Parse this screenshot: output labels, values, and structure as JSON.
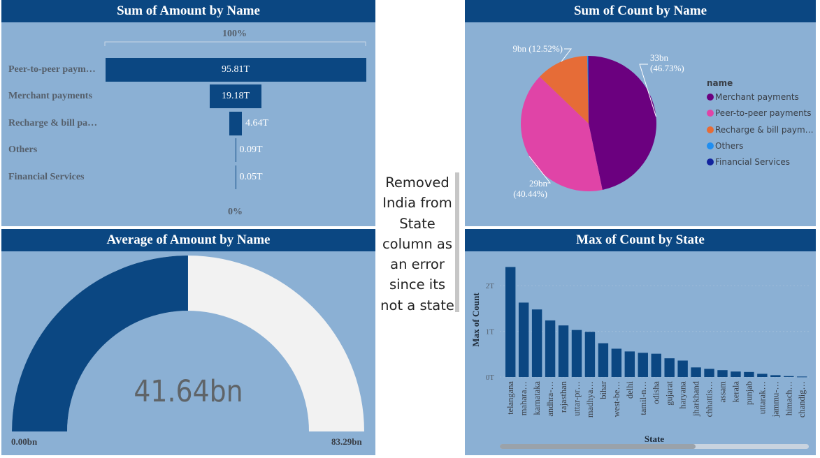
{
  "note": {
    "lines": [
      "Removed",
      "India from",
      "State",
      "column as",
      "an error",
      "since its",
      "not a state"
    ]
  },
  "funnel": {
    "title": "Sum of Amount by Name",
    "top_label": "100%",
    "bottom_label": "0%",
    "chart_data": {
      "type": "bar",
      "title": "Sum of Amount by Name",
      "categories": [
        "Peer-to-peer paym…",
        "Merchant payments",
        "Recharge & bill pa…",
        "Others",
        "Financial Services"
      ],
      "values": [
        95.81,
        19.18,
        4.64,
        0.09,
        0.05
      ],
      "value_labels": [
        "95.81T",
        "19.18T",
        "4.64T",
        "0.09T",
        "0.05T"
      ],
      "unit": "T",
      "color": "#0b4782"
    }
  },
  "pie": {
    "title": "Sum of Count by Name",
    "legend_title": "name",
    "chart_data": {
      "type": "pie",
      "title": "Sum of Count by Name",
      "slices": [
        {
          "name": "Merchant payments",
          "value": 33,
          "label": "33bn",
          "pct": "(46.73%)",
          "color": "#6b007f"
        },
        {
          "name": "Peer-to-peer payments",
          "value": 28.56,
          "label": "29bn",
          "pct": "(40.44%)",
          "color": "#e044a7"
        },
        {
          "name": "Recharge & bill paym…",
          "value": 8.84,
          "label": "9bn",
          "pct": "(12.52%)",
          "color": "#e66c37"
        },
        {
          "name": "Others",
          "value": 0.15,
          "label": "",
          "pct": "",
          "color": "#1f8ef1"
        },
        {
          "name": "Financial Services",
          "value": 0.07,
          "label": "",
          "pct": "",
          "color": "#12239e"
        }
      ],
      "legend_placement": "right"
    }
  },
  "gauge": {
    "title": "Average of Amount by Name",
    "chart_data": {
      "type": "gauge",
      "value": 41.64,
      "min": 0,
      "max": 83.29,
      "value_label": "41.64bn",
      "min_label": "0.00bn",
      "max_label": "83.29bn",
      "fill_color": "#0b4782",
      "track_color": "#f2f2f2"
    }
  },
  "column": {
    "title": "Max of Count by State",
    "chart_data": {
      "type": "bar",
      "title": "Max of Count by State",
      "xlabel": "State",
      "ylabel": "Max of Count",
      "ylim": [
        0,
        2.6
      ],
      "yticks": [
        0,
        1,
        2
      ],
      "ytick_labels": [
        "0T",
        "1T",
        "2T"
      ],
      "grid": true,
      "categories": [
        "telangana",
        "mahara…",
        "karnataka",
        "andhra-…",
        "rajasthan",
        "uttar-pr…",
        "madhya…",
        "bihar",
        "west-be…",
        "delhi",
        "tamil-n…",
        "odisha",
        "gujarat",
        "haryana",
        "jharkhand",
        "chhattis…",
        "assam",
        "kerala",
        "punjab",
        "uttarak…",
        "jammu-…",
        "himach…",
        "chandig…"
      ],
      "values": [
        2.41,
        1.63,
        1.48,
        1.24,
        1.13,
        1.03,
        0.99,
        0.74,
        0.62,
        0.56,
        0.53,
        0.51,
        0.41,
        0.36,
        0.21,
        0.18,
        0.15,
        0.12,
        0.11,
        0.07,
        0.04,
        0.02,
        0.01
      ],
      "color": "#0b4782"
    }
  }
}
